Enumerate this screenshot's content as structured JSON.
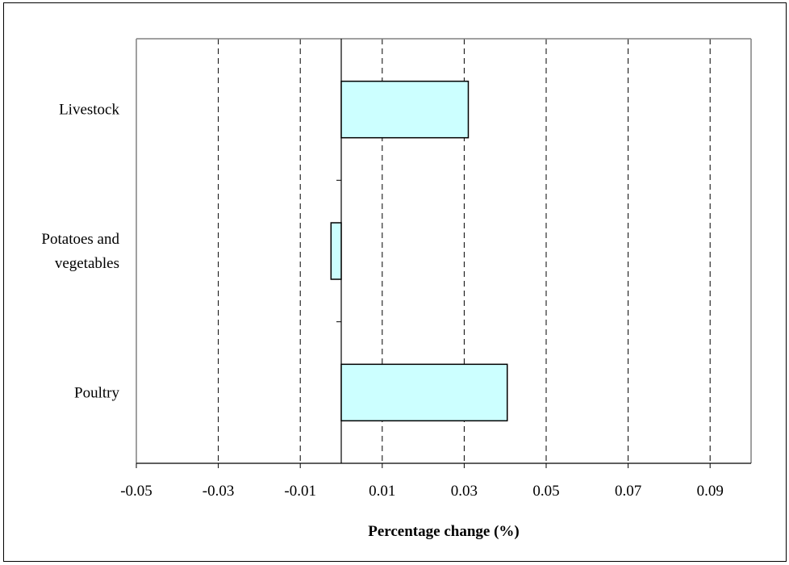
{
  "chart_data": {
    "type": "bar",
    "orientation": "horizontal",
    "categories": [
      "Livestock",
      "Potatoes and vegetables",
      "Poultry"
    ],
    "category_label_lines": [
      [
        "Livestock"
      ],
      [
        "Potatoes and",
        "vegetables"
      ],
      [
        "Poultry"
      ]
    ],
    "values": [
      0.031,
      -0.0025,
      0.0405
    ],
    "xlabel": "Percentage change (%)",
    "ylabel": "",
    "title": "",
    "xlim": [
      -0.05,
      0.1
    ],
    "xticks": [
      -0.05,
      -0.03,
      -0.01,
      0.01,
      0.03,
      0.05,
      0.07,
      0.09
    ],
    "xtick_labels": [
      "-0.05",
      "-0.03",
      "-0.01",
      "0.01",
      "0.03",
      "0.05",
      "0.07",
      "0.09"
    ],
    "gridlines": [
      -0.03,
      -0.01,
      0.01,
      0.03,
      0.05,
      0.07,
      0.09
    ],
    "grid": "vertical-dashed",
    "legend": "none",
    "colors": {
      "bar_fill": "#ccffff",
      "bar_stroke": "#000000",
      "plot_border": "#808080",
      "grid": "#000000"
    }
  }
}
